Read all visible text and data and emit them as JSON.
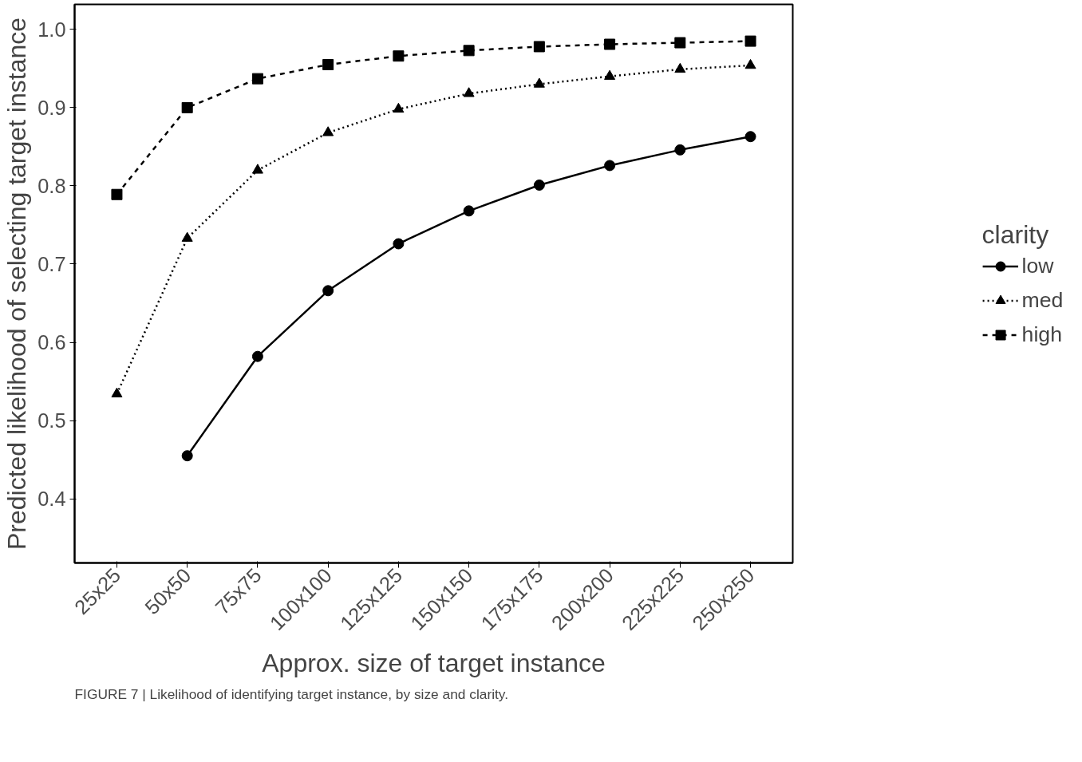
{
  "chart_data": {
    "type": "line",
    "xlabel": "Approx. size of target instance",
    "ylabel": "Predicted likelihood of selecting target instance",
    "legend_title": "clarity",
    "legend": "right",
    "grid": false,
    "categories": [
      "25x25",
      "50x50",
      "75x75",
      "100x100",
      "125x125",
      "150x150",
      "175x175",
      "200x200",
      "225x225",
      "250x250"
    ],
    "ylim": [
      0.318,
      1.032
    ],
    "yticks": [
      0.4,
      0.5,
      0.6,
      0.7,
      0.8,
      0.9,
      {
        "value": 1.0,
        "label": "1.0"
      }
    ],
    "series": [
      {
        "name": "low",
        "color": "#000000",
        "marker": "circle",
        "line_style": "solid",
        "values": [
          null,
          0.455,
          0.582,
          0.666,
          0.726,
          0.768,
          0.801,
          0.826,
          0.846,
          0.863
        ]
      },
      {
        "name": "med",
        "color": "#000000",
        "marker": "triangle",
        "line_style": "dotted",
        "values": [
          0.534,
          0.733,
          0.82,
          0.868,
          0.898,
          0.918,
          0.93,
          0.94,
          0.949,
          0.954
        ]
      },
      {
        "name": "high",
        "color": "#000000",
        "marker": "square",
        "line_style": "dashed",
        "values": [
          0.789,
          0.9,
          0.937,
          0.955,
          0.966,
          0.973,
          0.978,
          0.981,
          0.983,
          0.985
        ]
      }
    ],
    "annotations": [
      "FIGURE 7 | Likelihood of identifying target instance, by size and clarity."
    ]
  }
}
